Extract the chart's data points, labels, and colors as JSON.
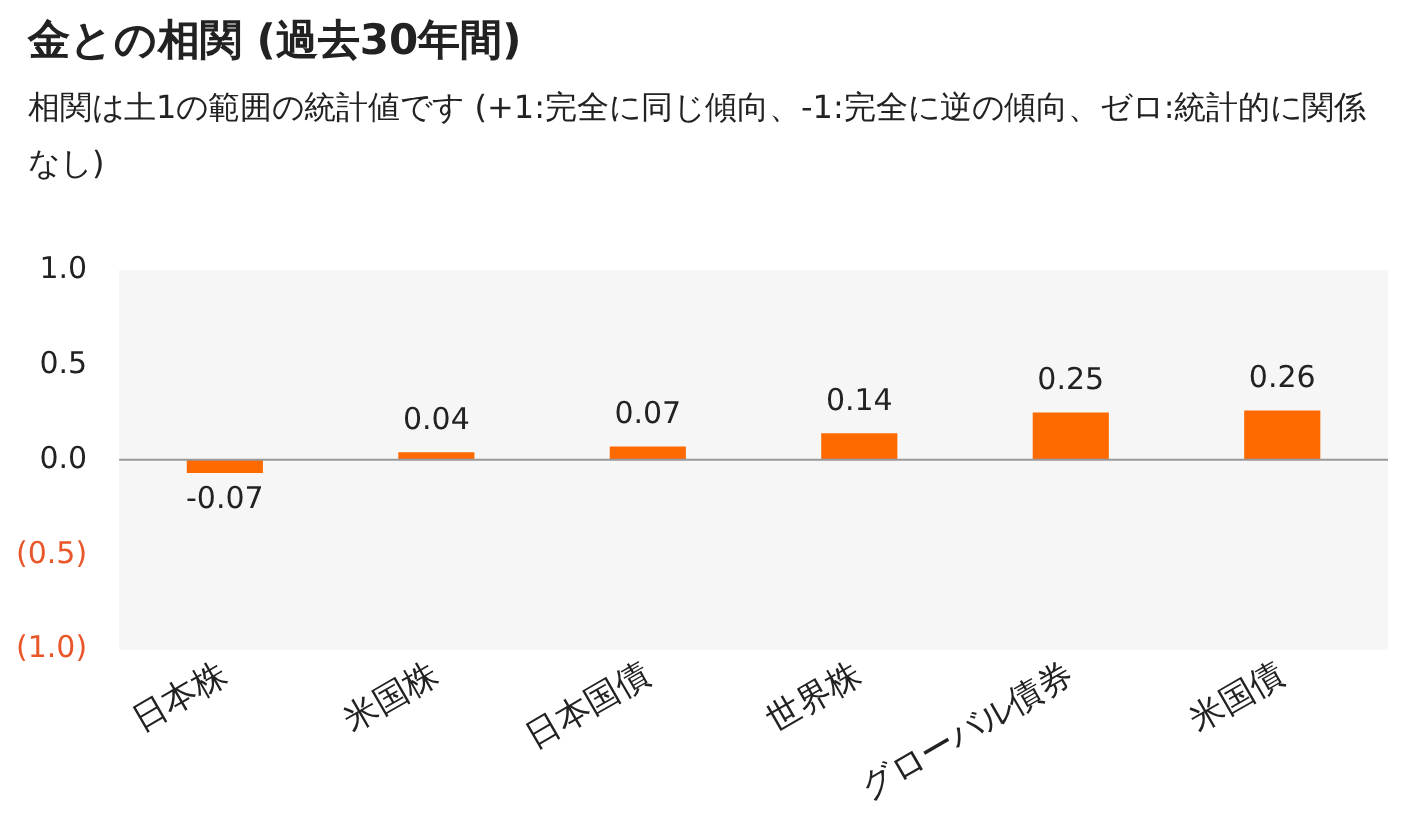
{
  "chart_data": {
    "type": "bar",
    "title": "金との相関 (過去30年間)",
    "subtitle": "相関は土1の範囲の統計値です (+1:完全に同じ傾向、-1:完全に逆の傾向、ゼロ:統計的に関係なし)",
    "categories": [
      "日本株",
      "米国株",
      "日本国債",
      "世界株",
      "グローバル債券",
      "米国債"
    ],
    "values": [
      -0.07,
      0.04,
      0.07,
      0.14,
      0.25,
      0.26
    ],
    "color": "#ff6a00",
    "ylim": [
      -1,
      1
    ],
    "yticks": [
      {
        "value": -1,
        "label": "(1.0)"
      },
      {
        "value": -0.5,
        "label": "(0.5)"
      },
      {
        "value": 0,
        "label": "0.0"
      },
      {
        "value": 0.5,
        "label": "0.5"
      },
      {
        "value": 1,
        "label": "1.0"
      }
    ],
    "ref_lines": [
      {
        "axis": "y",
        "value": 0,
        "color": "#999999"
      }
    ],
    "data_labels": true,
    "grid": false,
    "legend": false
  }
}
